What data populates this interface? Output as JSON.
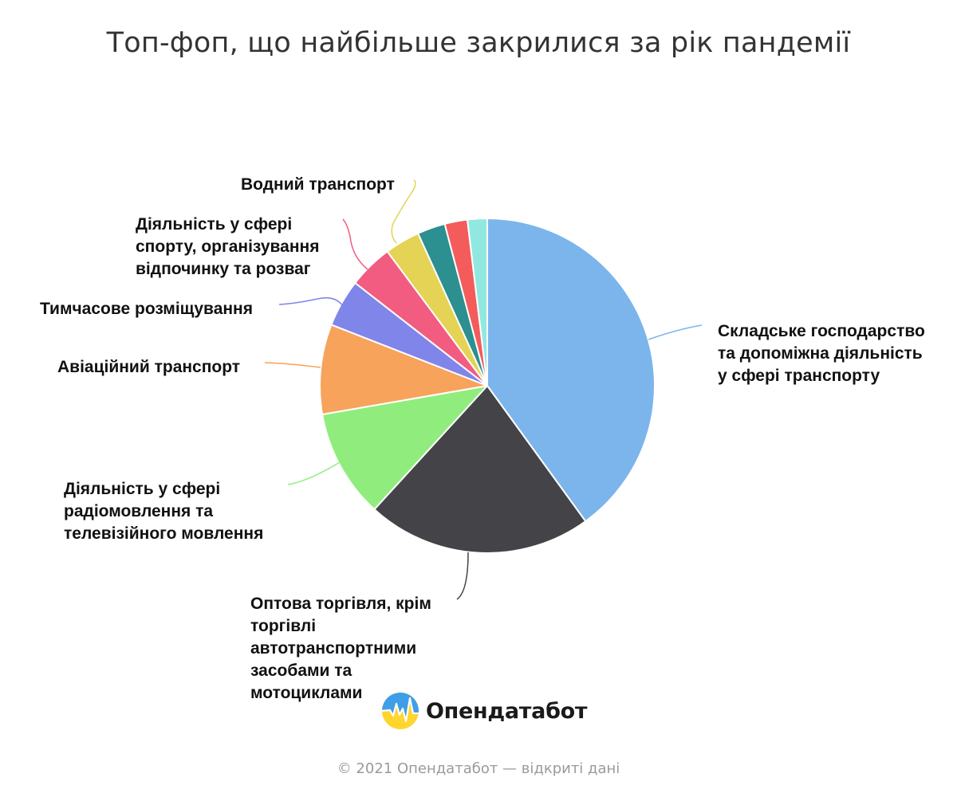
{
  "chart_data": {
    "type": "pie",
    "title": "Топ-фоп, що найбільше закрилися за рік пандемії",
    "start_angle_deg": 0,
    "direction": "clockwise",
    "slices": [
      {
        "label": "Складське господарство та допоміжна діяльність у сфері транспорту",
        "value": 40.1,
        "color": "#7cb5ec"
      },
      {
        "label": "Оптова торгівля, крім торгівлі автотранспортними засобами та мотоциклами",
        "value": 21.8,
        "color": "#434348"
      },
      {
        "label": "Діяльність у сфері радіомовлення та телевізійного мовлення",
        "value": 10.5,
        "color": "#90ed7d"
      },
      {
        "label": "Авіаційний транспорт",
        "value": 8.7,
        "color": "#f7a35c"
      },
      {
        "label": "Тимчасове розміщування",
        "value": 4.6,
        "color": "#8085e9"
      },
      {
        "label": "Діяльність у сфері спорту, організування відпочинку та розваг",
        "value": 4.3,
        "color": "#f15c80"
      },
      {
        "label": "Водний транспорт",
        "value": 3.4,
        "color": "#e4d354"
      },
      {
        "label": "",
        "value": 2.7,
        "color": "#2b908f"
      },
      {
        "label": "",
        "value": 2.2,
        "color": "#f45b5b"
      },
      {
        "label": "",
        "value": 1.9,
        "color": "#91e8e1"
      }
    ]
  },
  "brand": {
    "name": "Опендатабот",
    "logo": "opendatabot-logo-icon"
  },
  "footer": {
    "credit": "© 2021 Опендатабот — відкриті дані"
  }
}
